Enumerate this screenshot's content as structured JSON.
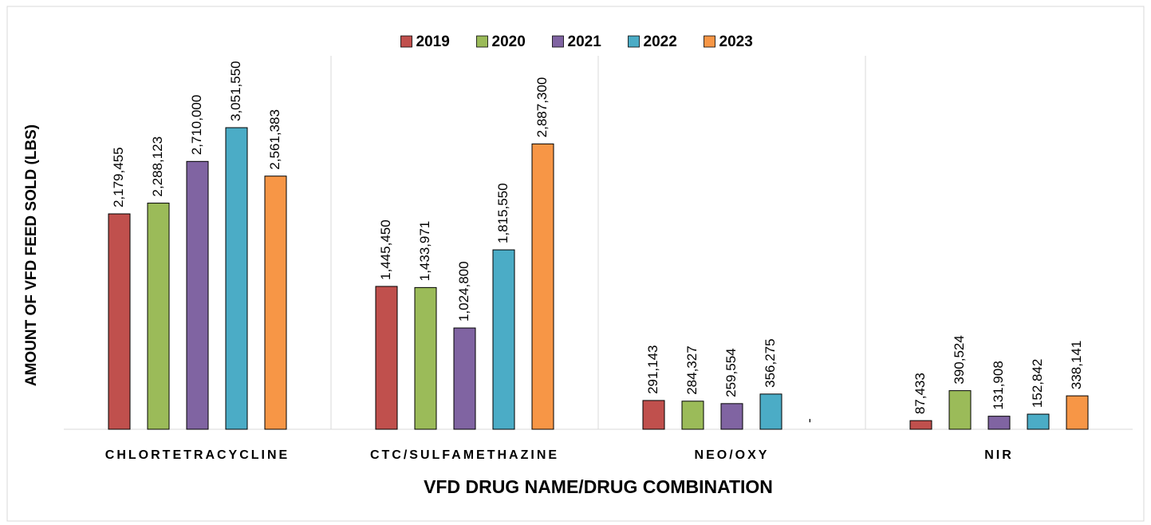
{
  "chart_data": {
    "type": "bar",
    "y_label": "AMOUNT OF VFD FEED SOLD (LBS)",
    "x_label": "VFD DRUG NAME/DRUG COMBINATION",
    "categories": [
      "CHLORTETRACYCLINE",
      "CTC/SULFAMETHAZINE",
      "NEO/OXY",
      "NIR"
    ],
    "series": [
      {
        "name": "2019",
        "color": "#c0504d",
        "values": [
          2179455,
          1445450,
          291143,
          87433
        ],
        "value_labels": [
          "2,179,455",
          "1,445,450",
          "291,143",
          "87,433"
        ]
      },
      {
        "name": "2020",
        "color": "#9bbb59",
        "values": [
          2288123,
          1433971,
          284327,
          390524
        ],
        "value_labels": [
          "2,288,123",
          "1,433,971",
          "284,327",
          "390,524"
        ]
      },
      {
        "name": "2021",
        "color": "#8064a2",
        "values": [
          2710000,
          1024800,
          259554,
          131908
        ],
        "value_labels": [
          "2,710,000",
          "1,024,800",
          "259,554",
          "131,908"
        ]
      },
      {
        "name": "2022",
        "color": "#4bacc6",
        "values": [
          3051550,
          1815550,
          356275,
          152842
        ],
        "value_labels": [
          "3,051,550",
          "1,815,550",
          "356,275",
          "152,842"
        ]
      },
      {
        "name": "2023",
        "color": "#f79646",
        "values": [
          2561383,
          2887300,
          0,
          338141
        ],
        "value_labels": [
          "2,561,383",
          "2,887,300",
          "-",
          "338,141"
        ]
      }
    ],
    "legend_position": "top"
  }
}
